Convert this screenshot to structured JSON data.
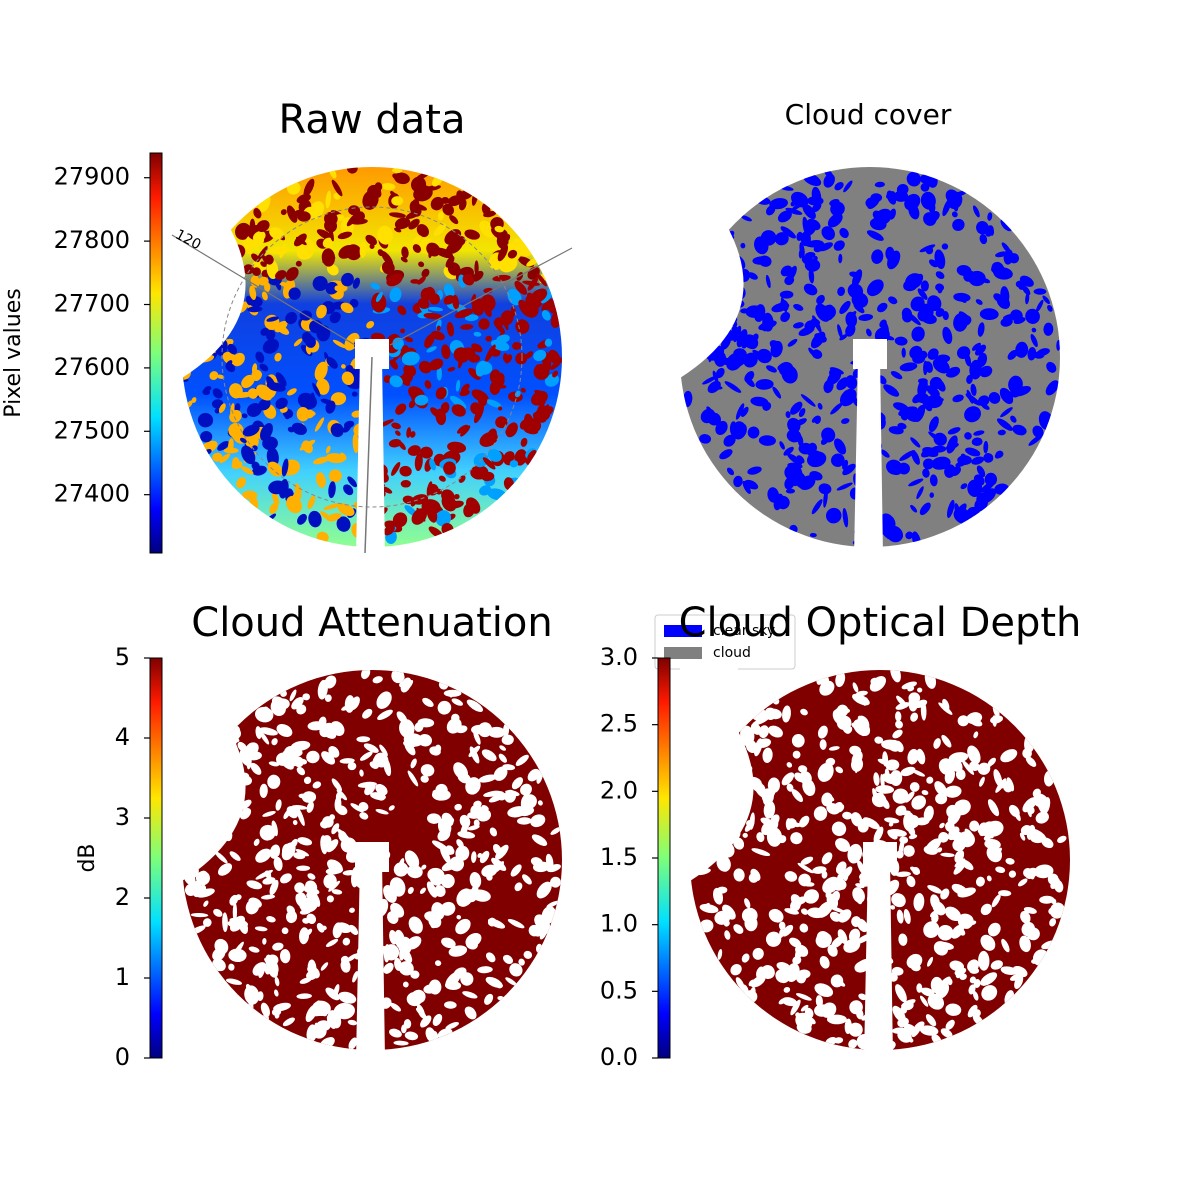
{
  "chart_data": [
    {
      "type": "image",
      "title": "Raw data",
      "colorbar_label": "Pixel values",
      "clim": [
        27308,
        27939
      ],
      "cticks": [
        27400,
        27500,
        27600,
        27700,
        27800,
        27900
      ],
      "annotations": [
        "120"
      ]
    },
    {
      "type": "image",
      "title": "Cloud cover",
      "series": [
        {
          "name": "clear sky",
          "color": "#0000ff"
        },
        {
          "name": "cloud",
          "color": "#808080"
        }
      ]
    },
    {
      "type": "image",
      "title": "Cloud Attenuation",
      "colorbar_label": "dB",
      "clim": [
        0,
        5
      ],
      "cticks": [
        0,
        1,
        2,
        3,
        4,
        5
      ]
    },
    {
      "type": "image",
      "title": "Cloud Optical Depth",
      "clim": [
        0,
        3
      ],
      "cticks": [
        {
          "value": 0,
          "label": "0.0"
        },
        {
          "value": 0.5,
          "label": "0.5"
        },
        {
          "value": 1,
          "label": "1.0"
        },
        {
          "value": 1.5,
          "label": "1.5"
        },
        {
          "value": 2,
          "label": "2.0"
        },
        {
          "value": 2.5,
          "label": "2.5"
        },
        {
          "value": 3,
          "label": "3.0"
        }
      ]
    }
  ]
}
